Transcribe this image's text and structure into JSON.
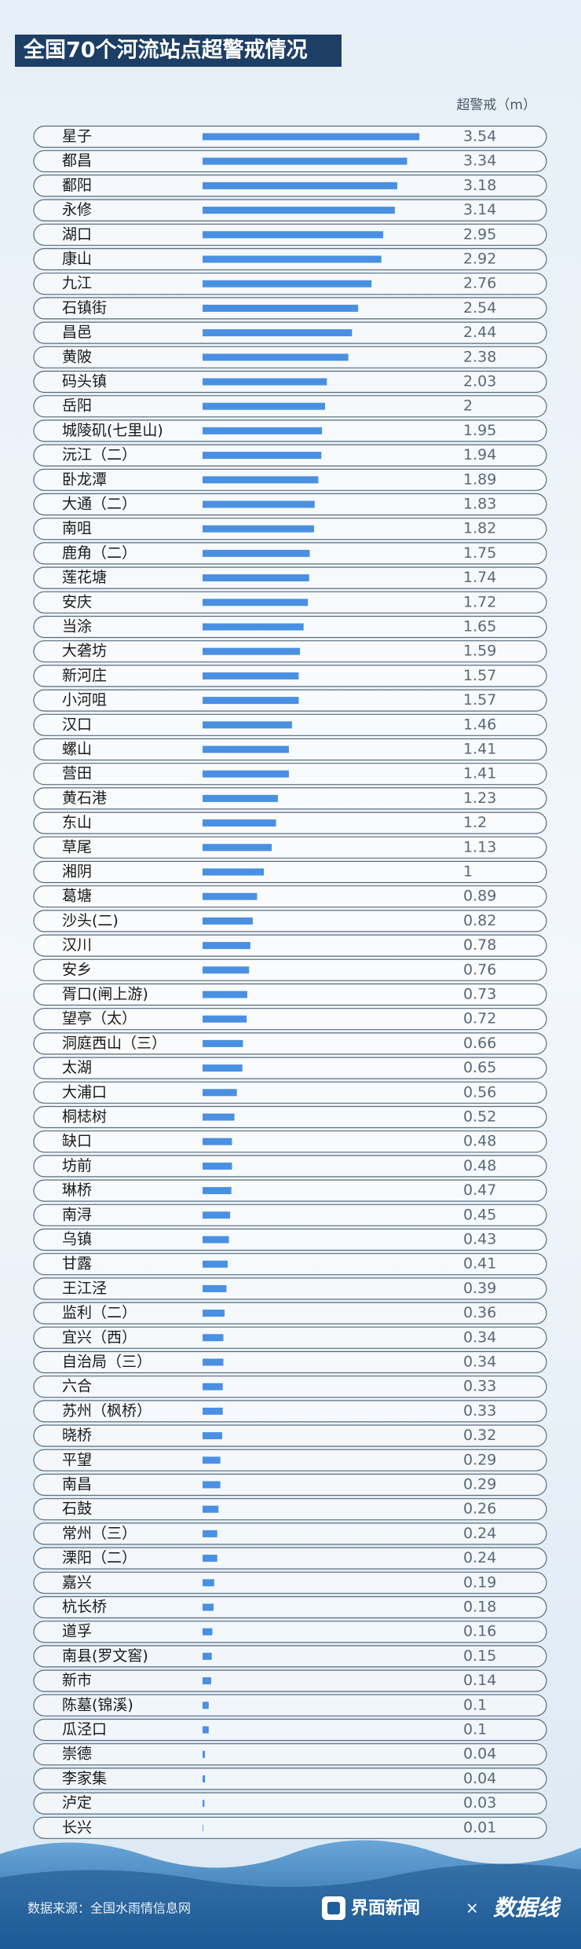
{
  "chart_data": {
    "type": "hbar",
    "title": "全国70个河流站点超警戒情况",
    "unit_label": "超警戒（m）",
    "color": "#4a90e2",
    "categories": [
      "星子",
      "都昌",
      "鄱阳",
      "永修",
      "湖口",
      "康山",
      "九江",
      "石镇街",
      "昌邑",
      "黄陂",
      "码头镇",
      "岳阳",
      "城陵矶(七里山)",
      "沅江（二）",
      "卧龙潭",
      "大通（二）",
      "南咀",
      "鹿角（二）",
      "莲花塘",
      "安庆",
      "当涂",
      "大砻坊",
      "新河庄",
      "小河咀",
      "汉口",
      "螺山",
      "营田",
      "黄石港",
      "东山",
      "草尾",
      "湘阴",
      "葛塘",
      "沙头(二)",
      "汉川",
      "安乡",
      "胥口(闸上游)",
      "望亭（太）",
      "洞庭西山（三）",
      "太湖",
      "大浦口",
      "桐梽树",
      "缺口",
      "坊前",
      "琳桥",
      "南浔",
      "乌镇",
      "甘露",
      "王江泾",
      "监利（二）",
      "宜兴（西）",
      "自治局（三）",
      "六合",
      "苏州（枫桥）",
      "晓桥",
      "平望",
      "南昌",
      "石鼓",
      "常州（三）",
      "溧阳（二）",
      "嘉兴",
      "杭长桥",
      "道孚",
      "南县(罗文窖)",
      "新市",
      "陈墓(锦溪)",
      "瓜泾口",
      "崇德",
      "李家集",
      "泸定",
      "长兴"
    ],
    "values": [
      3.54,
      3.34,
      3.18,
      3.14,
      2.95,
      2.92,
      2.76,
      2.54,
      2.44,
      2.38,
      2.03,
      2,
      1.95,
      1.94,
      1.89,
      1.83,
      1.82,
      1.75,
      1.74,
      1.72,
      1.65,
      1.59,
      1.57,
      1.57,
      1.46,
      1.41,
      1.41,
      1.23,
      1.2,
      1.13,
      1,
      0.89,
      0.82,
      0.78,
      0.76,
      0.73,
      0.72,
      0.66,
      0.65,
      0.56,
      0.52,
      0.48,
      0.48,
      0.47,
      0.45,
      0.43,
      0.41,
      0.39,
      0.36,
      0.34,
      0.34,
      0.33,
      0.33,
      0.32,
      0.29,
      0.29,
      0.26,
      0.24,
      0.24,
      0.19,
      0.18,
      0.16,
      0.15,
      0.14,
      0.1,
      0.1,
      0.04,
      0.04,
      0.03,
      0.01
    ]
  },
  "footer": {
    "source": "数据来源：全国水雨情信息网",
    "brand": "界面新闻",
    "times": "×",
    "logo": "数据线"
  }
}
